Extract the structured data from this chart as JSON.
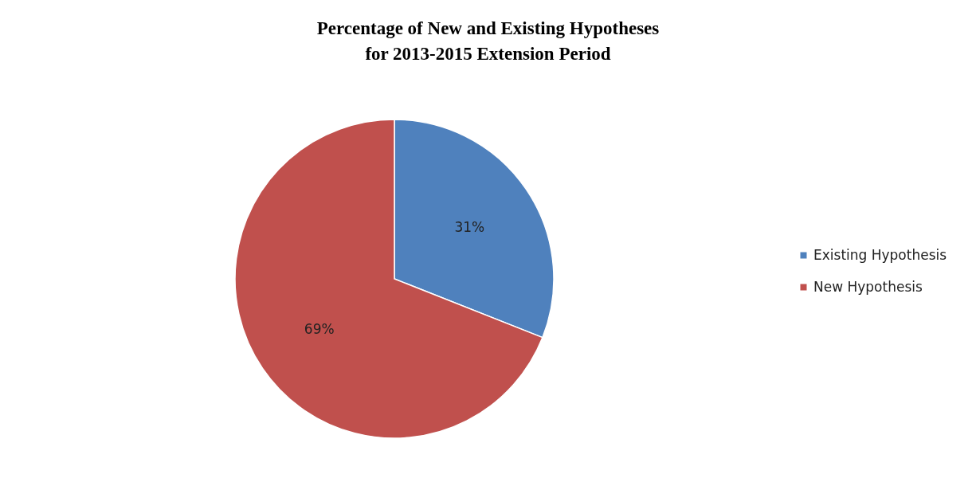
{
  "chart_data": {
    "type": "pie",
    "title": "Percentage of New and Existing Hypotheses\nfor 2013-2015 Extension Period",
    "categories": [
      "Existing Hypothesis",
      "New Hypothesis"
    ],
    "values": [
      31,
      69
    ],
    "colors": [
      "#4f81bd",
      "#c0504d"
    ],
    "value_labels": [
      "31%",
      "69%"
    ],
    "legend": "right"
  }
}
